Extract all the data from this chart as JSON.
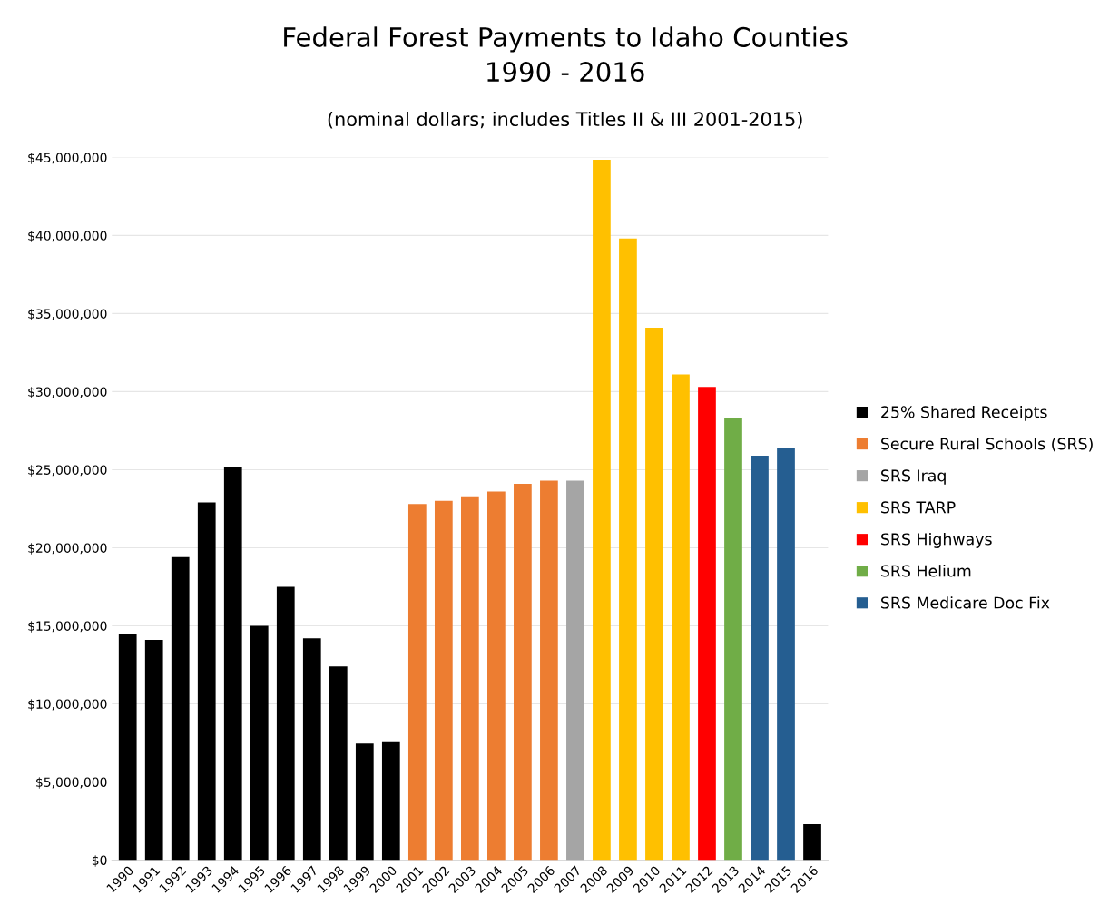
{
  "chart_data": {
    "type": "bar",
    "title": "Federal Forest Payments to Idaho Counties\n1990 - 2016",
    "subtitle": "(nominal dollars; includes Titles II & III 2001-2015)",
    "categories": [
      "1990",
      "1991",
      "1992",
      "1993",
      "1994",
      "1995",
      "1996",
      "1997",
      "1998",
      "1999",
      "2000",
      "2001",
      "2002",
      "2003",
      "2004",
      "2005",
      "2006",
      "2007",
      "2008",
      "2009",
      "2010",
      "2011",
      "2012",
      "2013",
      "2014",
      "2015",
      "2016"
    ],
    "series": [
      {
        "name": "25% Shared Receipts",
        "color": "#000000",
        "values": [
          14500000,
          14100000,
          19400000,
          22900000,
          25200000,
          15000000,
          17500000,
          14200000,
          12400000,
          7450000,
          7600000,
          null,
          null,
          null,
          null,
          null,
          null,
          null,
          null,
          null,
          null,
          null,
          null,
          null,
          null,
          null,
          2300000
        ]
      },
      {
        "name": "Secure Rural Schools (SRS)",
        "color": "#ed7d31",
        "values": [
          null,
          null,
          null,
          null,
          null,
          null,
          null,
          null,
          null,
          null,
          null,
          22800000,
          23000000,
          23300000,
          23600000,
          24100000,
          24300000,
          null,
          null,
          null,
          null,
          null,
          null,
          null,
          null,
          null,
          null
        ]
      },
      {
        "name": "SRS Iraq",
        "color": "#a5a5a5",
        "values": [
          null,
          null,
          null,
          null,
          null,
          null,
          null,
          null,
          null,
          null,
          null,
          null,
          null,
          null,
          null,
          null,
          null,
          24300000,
          null,
          null,
          null,
          null,
          null,
          null,
          null,
          null,
          null
        ]
      },
      {
        "name": "SRS TARP",
        "color": "#ffc000",
        "values": [
          null,
          null,
          null,
          null,
          null,
          null,
          null,
          null,
          null,
          null,
          null,
          null,
          null,
          null,
          null,
          null,
          null,
          null,
          44850000,
          39800000,
          34100000,
          31100000,
          null,
          null,
          null,
          null,
          null
        ]
      },
      {
        "name": "SRS Highways",
        "color": "#ff0000",
        "values": [
          null,
          null,
          null,
          null,
          null,
          null,
          null,
          null,
          null,
          null,
          null,
          null,
          null,
          null,
          null,
          null,
          null,
          null,
          null,
          null,
          null,
          null,
          30300000,
          null,
          null,
          null,
          null
        ]
      },
      {
        "name": "SRS Helium",
        "color": "#70ad47",
        "values": [
          null,
          null,
          null,
          null,
          null,
          null,
          null,
          null,
          null,
          null,
          null,
          null,
          null,
          null,
          null,
          null,
          null,
          null,
          null,
          null,
          null,
          null,
          null,
          28300000,
          null,
          null,
          null
        ]
      },
      {
        "name": "SRS Medicare Doc Fix",
        "color": "#255e91",
        "values": [
          null,
          null,
          null,
          null,
          null,
          null,
          null,
          null,
          null,
          null,
          null,
          null,
          null,
          null,
          null,
          null,
          null,
          null,
          null,
          null,
          null,
          null,
          null,
          null,
          25900000,
          26400000,
          null
        ]
      }
    ],
    "ylim": [
      0,
      45000000
    ],
    "yticks": [
      {
        "value": 0,
        "label": "$0"
      },
      {
        "value": 5000000,
        "label": "$5,000,000"
      },
      {
        "value": 10000000,
        "label": "$10,000,000"
      },
      {
        "value": 15000000,
        "label": "$15,000,000"
      },
      {
        "value": 20000000,
        "label": "$20,000,000"
      },
      {
        "value": 25000000,
        "label": "$25,000,000"
      },
      {
        "value": 30000000,
        "label": "$30,000,000"
      },
      {
        "value": 35000000,
        "label": "$35,000,000"
      },
      {
        "value": 40000000,
        "label": "$40,000,000"
      },
      {
        "value": 45000000,
        "label": "$45,000,000"
      }
    ],
    "grid": "y",
    "legend": "right"
  }
}
